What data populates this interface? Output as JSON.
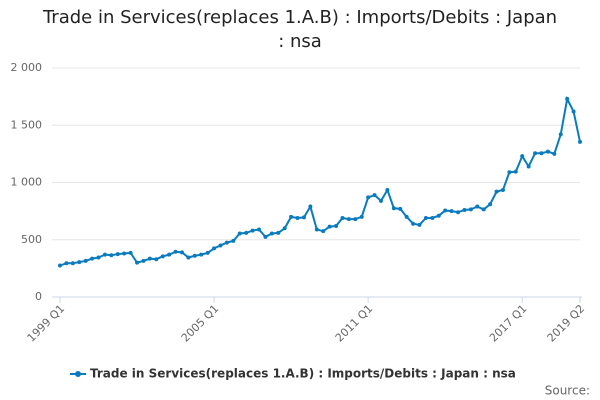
{
  "chart_data": {
    "type": "line",
    "title": "Trade in Services(replaces 1.A.B) : Imports/Debits : Japan : nsa",
    "source": "Source:",
    "categories": [
      "1999 Q1",
      null,
      null,
      null,
      null,
      null,
      null,
      null,
      null,
      null,
      null,
      null,
      null,
      null,
      null,
      null,
      null,
      null,
      null,
      null,
      null,
      null,
      null,
      null,
      "2005 Q1",
      null,
      null,
      null,
      null,
      null,
      null,
      null,
      null,
      null,
      null,
      null,
      null,
      null,
      null,
      null,
      null,
      null,
      null,
      null,
      null,
      null,
      null,
      null,
      "2011 Q1",
      null,
      null,
      null,
      null,
      null,
      null,
      null,
      null,
      null,
      null,
      null,
      null,
      null,
      null,
      null,
      null,
      null,
      null,
      null,
      null,
      null,
      null,
      null,
      "2017 Q1",
      null,
      null,
      null,
      null,
      null,
      null,
      null,
      null,
      "2019 Q2"
    ],
    "series": [
      {
        "name": "Trade in Services(replaces 1.A.B) : Imports/Debits : Japan : nsa",
        "color": "#0b7bbf",
        "values": [
          275,
          295,
          295,
          305,
          315,
          335,
          345,
          370,
          365,
          375,
          380,
          385,
          300,
          315,
          335,
          330,
          355,
          370,
          395,
          390,
          345,
          360,
          370,
          385,
          425,
          450,
          475,
          490,
          555,
          560,
          580,
          590,
          525,
          555,
          560,
          600,
          700,
          690,
          695,
          790,
          590,
          575,
          615,
          620,
          690,
          680,
          680,
          700,
          870,
          890,
          840,
          935,
          775,
          770,
          700,
          640,
          630,
          690,
          690,
          710,
          755,
          750,
          740,
          760,
          765,
          790,
          765,
          810,
          920,
          935,
          1090,
          1095,
          1230,
          1140,
          1255,
          1255,
          1270,
          1250,
          1420,
          1730,
          1620,
          1355
        ]
      }
    ],
    "ylim": [
      0,
      2000
    ],
    "yticks": [
      0,
      500,
      {
        "value": 1000,
        "label": "1 000"
      },
      {
        "value": 1500,
        "label": "1 500"
      },
      {
        "value": 2000,
        "label": "2 000"
      }
    ],
    "grid": true,
    "legend": "bottom"
  }
}
